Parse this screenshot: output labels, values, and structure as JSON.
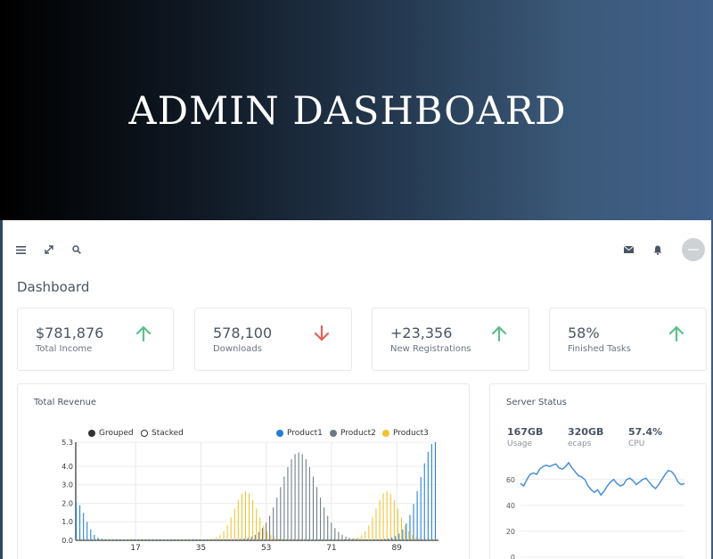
{
  "hero": {
    "title": "ADMIN DASHBOARD"
  },
  "topbar": {
    "icons": [
      "menu-icon",
      "expand-icon",
      "search-icon",
      "mail-icon",
      "bell-icon",
      "avatar"
    ]
  },
  "page": {
    "title": "Dashboard"
  },
  "stats": [
    {
      "value": "$781,876",
      "label": "Total Income",
      "trend": "up"
    },
    {
      "value": "578,100",
      "label": "Downloads",
      "trend": "down"
    },
    {
      "value": "+23,356",
      "label": "New Registrations",
      "trend": "up"
    },
    {
      "value": "58%",
      "label": "Finished Tasks",
      "trend": "up"
    }
  ],
  "colors": {
    "up": "#5cc08a",
    "down": "#e06355",
    "product1": "#1f7ed6",
    "product2": "#6c7a86",
    "product3": "#f2c230"
  },
  "revenue": {
    "title": "Total Revenue",
    "modes": [
      {
        "label": "Grouped",
        "selected": true
      },
      {
        "label": "Stacked",
        "selected": false
      }
    ]
  },
  "server": {
    "title": "Server Status",
    "metrics": [
      {
        "value": "167GB",
        "label": "Usage"
      },
      {
        "value": "320GB",
        "label": "ecaps"
      },
      {
        "value": "57.4%",
        "label": "CPU"
      }
    ]
  },
  "chart_data": [
    {
      "type": "bar",
      "title": "Total Revenue",
      "series": [
        {
          "name": "Product1",
          "shape": "U",
          "peak_left": 2.0,
          "peak_right": 5.3
        },
        {
          "name": "Product2",
          "shape": "peak",
          "peak_at": 62,
          "peak_value": 4.7
        },
        {
          "name": "Product3",
          "shape": "two-peaks",
          "peaks": [
            [
              47,
              2.6
            ],
            [
              86,
              2.6
            ]
          ]
        }
      ],
      "x_ticks": [
        17,
        35,
        53,
        71,
        89
      ],
      "y_ticks": [
        "0.0",
        "1.0",
        "2.0",
        "3.0",
        "4.0",
        "5.3"
      ],
      "ylim": [
        0,
        5.3
      ],
      "xlim": [
        1,
        100
      ],
      "legend": "top-right"
    },
    {
      "type": "line",
      "title": "Server Status",
      "y_ticks": [
        0,
        20,
        40,
        60
      ],
      "ylim": [
        0,
        75
      ],
      "values": [
        57,
        55,
        60,
        64,
        65,
        64,
        68,
        70,
        71,
        70,
        71,
        72,
        69,
        68,
        70,
        73,
        69,
        66,
        63,
        62,
        60,
        55,
        52,
        50,
        52,
        48,
        51,
        55,
        58,
        60,
        57,
        55,
        56,
        60,
        61,
        59,
        56,
        58,
        60,
        61,
        58,
        55,
        53,
        56,
        60,
        64,
        67,
        66,
        63,
        58,
        56,
        57
      ]
    }
  ]
}
